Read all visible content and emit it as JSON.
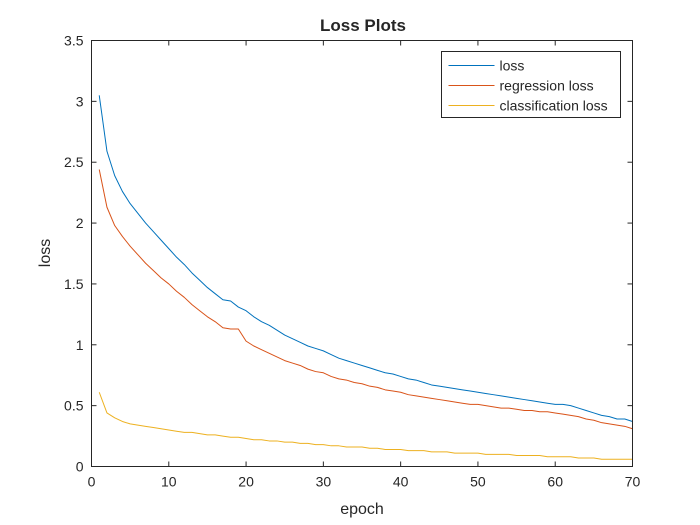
{
  "chart_data": {
    "type": "line",
    "title": "Loss Plots",
    "xlabel": "epoch",
    "ylabel": "loss",
    "xlim": [
      0,
      70
    ],
    "ylim": [
      0,
      3.5
    ],
    "xticks": [
      0,
      10,
      20,
      30,
      40,
      50,
      60,
      70
    ],
    "yticks": [
      0,
      0.5,
      1,
      1.5,
      2,
      2.5,
      3,
      3.5
    ],
    "xtick_labels": [
      "0",
      "10",
      "20",
      "30",
      "40",
      "50",
      "60",
      "70"
    ],
    "ytick_labels": [
      "0",
      "0.5",
      "1",
      "1.5",
      "2",
      "2.5",
      "3",
      "3.5"
    ],
    "grid": false,
    "legend_position": "top-right",
    "x": [
      1,
      2,
      3,
      4,
      5,
      6,
      7,
      8,
      9,
      10,
      11,
      12,
      13,
      14,
      15,
      16,
      17,
      18,
      19,
      20,
      21,
      22,
      23,
      24,
      25,
      26,
      27,
      28,
      29,
      30,
      31,
      32,
      33,
      34,
      35,
      36,
      37,
      38,
      39,
      40,
      41,
      42,
      43,
      44,
      45,
      46,
      47,
      48,
      49,
      50,
      51,
      52,
      53,
      54,
      55,
      56,
      57,
      58,
      59,
      60,
      61,
      62,
      63,
      64,
      65,
      66,
      67,
      68,
      69,
      70
    ],
    "series": [
      {
        "name": "loss",
        "color": "#0072BD",
        "values": [
          3.05,
          2.59,
          2.39,
          2.26,
          2.16,
          2.08,
          2.0,
          1.93,
          1.86,
          1.79,
          1.72,
          1.66,
          1.59,
          1.53,
          1.47,
          1.42,
          1.37,
          1.36,
          1.31,
          1.28,
          1.23,
          1.19,
          1.16,
          1.12,
          1.08,
          1.05,
          1.02,
          0.99,
          0.97,
          0.95,
          0.92,
          0.89,
          0.87,
          0.85,
          0.83,
          0.81,
          0.79,
          0.77,
          0.76,
          0.74,
          0.72,
          0.71,
          0.69,
          0.67,
          0.66,
          0.65,
          0.64,
          0.63,
          0.62,
          0.61,
          0.6,
          0.59,
          0.58,
          0.57,
          0.56,
          0.55,
          0.54,
          0.53,
          0.52,
          0.51,
          0.51,
          0.5,
          0.48,
          0.46,
          0.44,
          0.42,
          0.41,
          0.39,
          0.39,
          0.37
        ]
      },
      {
        "name": "regression loss",
        "color": "#D95319",
        "values": [
          2.44,
          2.13,
          1.98,
          1.89,
          1.81,
          1.74,
          1.67,
          1.61,
          1.55,
          1.5,
          1.44,
          1.39,
          1.33,
          1.28,
          1.23,
          1.19,
          1.14,
          1.13,
          1.13,
          1.03,
          0.99,
          0.96,
          0.93,
          0.9,
          0.87,
          0.85,
          0.83,
          0.8,
          0.78,
          0.77,
          0.74,
          0.72,
          0.71,
          0.69,
          0.68,
          0.66,
          0.65,
          0.63,
          0.62,
          0.61,
          0.59,
          0.58,
          0.57,
          0.56,
          0.55,
          0.54,
          0.53,
          0.52,
          0.51,
          0.51,
          0.5,
          0.49,
          0.48,
          0.48,
          0.47,
          0.46,
          0.46,
          0.45,
          0.45,
          0.44,
          0.43,
          0.42,
          0.41,
          0.39,
          0.38,
          0.36,
          0.35,
          0.34,
          0.33,
          0.31
        ]
      },
      {
        "name": "classification loss",
        "color": "#EDB120",
        "values": [
          0.61,
          0.44,
          0.4,
          0.37,
          0.35,
          0.34,
          0.33,
          0.32,
          0.31,
          0.3,
          0.29,
          0.28,
          0.28,
          0.27,
          0.26,
          0.26,
          0.25,
          0.24,
          0.24,
          0.23,
          0.22,
          0.22,
          0.21,
          0.21,
          0.2,
          0.2,
          0.19,
          0.19,
          0.18,
          0.18,
          0.17,
          0.17,
          0.16,
          0.16,
          0.16,
          0.15,
          0.15,
          0.14,
          0.14,
          0.14,
          0.13,
          0.13,
          0.13,
          0.12,
          0.12,
          0.12,
          0.11,
          0.11,
          0.11,
          0.11,
          0.1,
          0.1,
          0.1,
          0.1,
          0.09,
          0.09,
          0.09,
          0.09,
          0.08,
          0.08,
          0.08,
          0.08,
          0.07,
          0.07,
          0.07,
          0.06,
          0.06,
          0.06,
          0.06,
          0.06
        ]
      }
    ]
  }
}
